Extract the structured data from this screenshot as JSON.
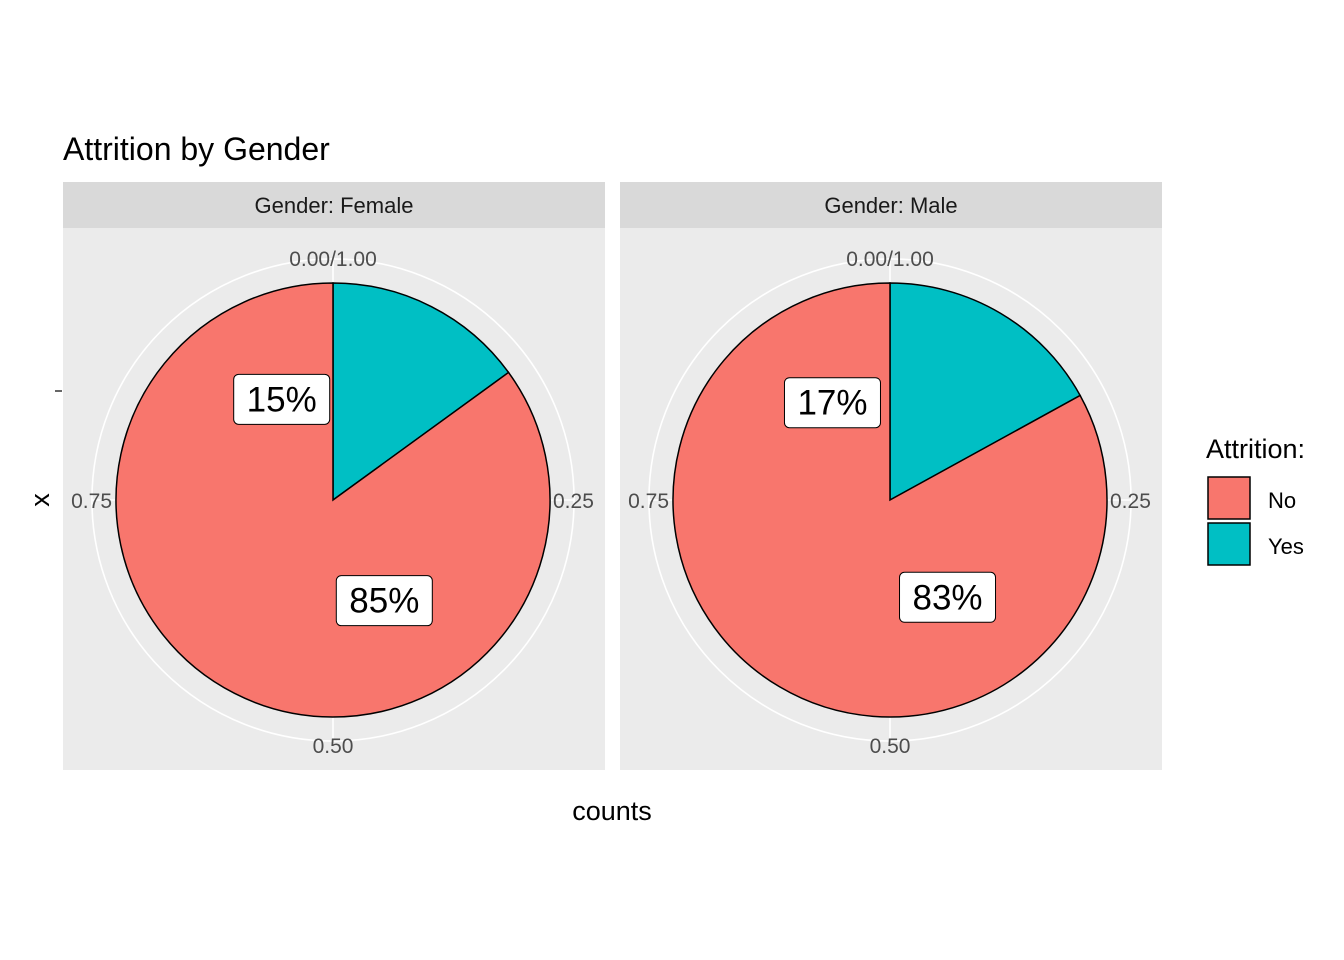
{
  "colors": {
    "no": "#F8766D",
    "yes": "#00BFC4",
    "panel_bg": "#EBEBEB",
    "strip_bg": "#D9D9D9",
    "grid": "#FFFFFF"
  },
  "chart_data": {
    "type": "pie",
    "title": "Attrition by Gender",
    "xlabel": "counts",
    "ylabel": "x",
    "theta_ticks": [
      "0.00/1.00",
      "0.25",
      "0.50",
      "0.75"
    ],
    "legend": {
      "title": "Attrition:",
      "placement": "right",
      "items": [
        {
          "label": "No",
          "color": "#F8766D"
        },
        {
          "label": "Yes",
          "color": "#00BFC4"
        }
      ]
    },
    "facets": [
      {
        "strip": "Gender: Female",
        "slices": [
          {
            "label": "Yes",
            "value": 0.15,
            "text": "15%",
            "color": "#00BFC4"
          },
          {
            "label": "No",
            "value": 0.85,
            "text": "85%",
            "color": "#F8766D"
          }
        ]
      },
      {
        "strip": "Gender: Male",
        "slices": [
          {
            "label": "Yes",
            "value": 0.17,
            "text": "17%",
            "color": "#00BFC4"
          },
          {
            "label": "No",
            "value": 0.83,
            "text": "83%",
            "color": "#F8766D"
          }
        ]
      }
    ]
  }
}
